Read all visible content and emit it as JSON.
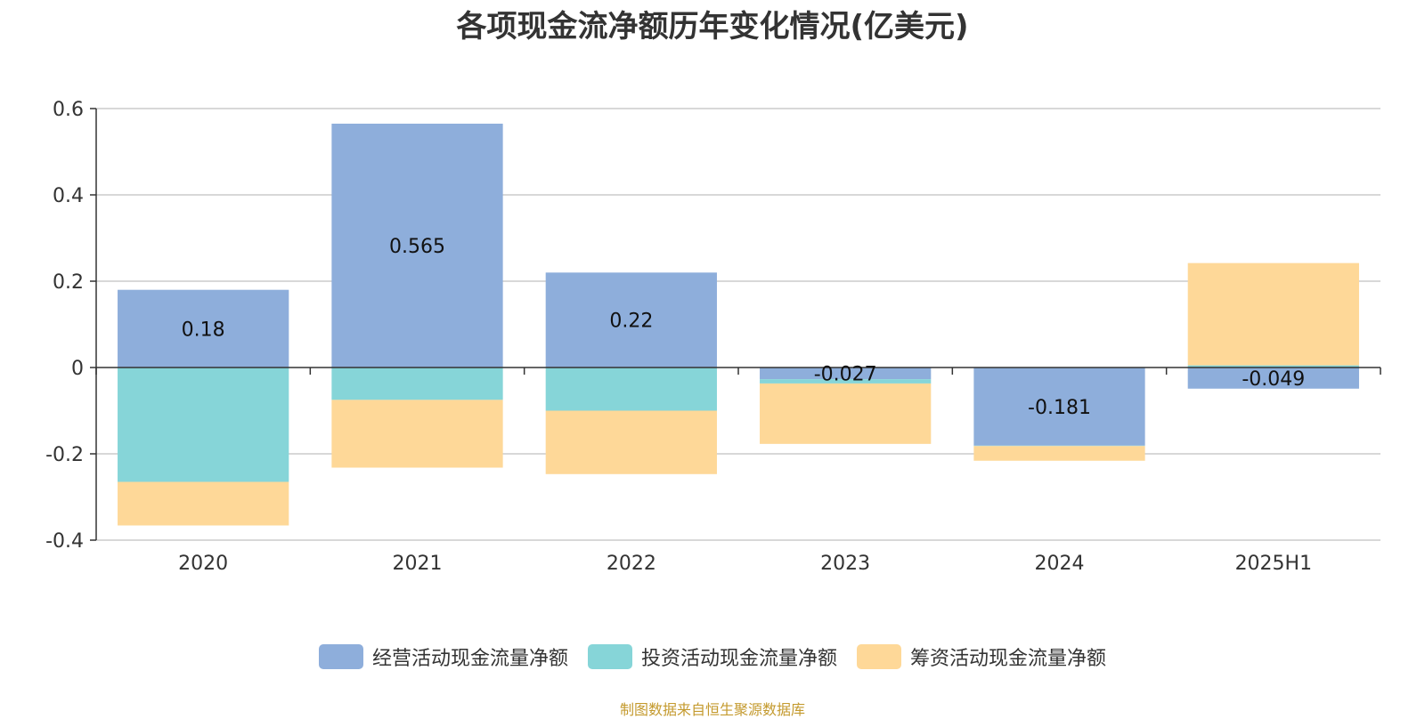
{
  "chart_data": {
    "type": "bar",
    "stacked": true,
    "title": "各项现金流净额历年变化情况(亿美元)",
    "categories": [
      "2020",
      "2021",
      "2022",
      "2023",
      "2024",
      "2025H1"
    ],
    "ylim": [
      -0.4,
      0.6
    ],
    "yticks": [
      0.6,
      0.4,
      0.2,
      0,
      -0.2,
      -0.4
    ],
    "ytick_labels": [
      "0.6",
      "0.4",
      "0.2",
      "0",
      "-0.2",
      "-0.4"
    ],
    "grid": true,
    "legend_position": "bottom",
    "series": [
      {
        "name": "经营活动现金流量净额",
        "color": "#8eaedb",
        "values": [
          0.18,
          0.565,
          0.22,
          -0.027,
          -0.181,
          -0.049
        ],
        "labels": [
          "0.18",
          "0.565",
          "0.22",
          "-0.027",
          "-0.181",
          "-0.049"
        ]
      },
      {
        "name": "投资活动现金流量净额",
        "color": "#86d5d8",
        "values": [
          -0.265,
          -0.075,
          -0.1,
          -0.01,
          -0.001,
          0.005
        ]
      },
      {
        "name": "筹资活动现金流量净额",
        "color": "#fed898",
        "values": [
          -0.101,
          -0.157,
          -0.147,
          -0.14,
          -0.034,
          0.237
        ]
      }
    ]
  },
  "source_note": "制图数据来自恒生聚源数据库"
}
